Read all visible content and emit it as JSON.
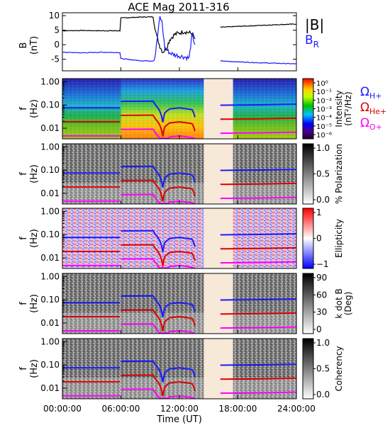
{
  "chart_data": [
    {
      "type": "line",
      "title": "ACE Mag 2011-316",
      "ylabel": "B",
      "yunit": "(nT)",
      "ylim": [
        -9,
        11
      ],
      "yticks": [
        10,
        5,
        0,
        -5
      ],
      "xlim": [
        0,
        24
      ],
      "series": [
        {
          "name": "|B|",
          "color": "#000000",
          "segments": [
            [
              [
                0,
                4.8
              ],
              [
                2,
                4.9
              ],
              [
                4,
                4.8
              ],
              [
                5.9,
                4.8
              ],
              [
                6,
                9.2
              ],
              [
                8,
                9.5
              ],
              [
                9.3,
                9.6
              ],
              [
                9.5,
                6
              ],
              [
                9.7,
                2.5
              ],
              [
                10,
                -0.5
              ],
              [
                10.3,
                -2.5
              ],
              [
                10.7,
                -1
              ],
              [
                11,
                1.8
              ],
              [
                11.5,
                3.5
              ],
              [
                12.5,
                4.6
              ],
              [
                13.3,
                3.8
              ],
              [
                13.6,
                2
              ]
            ],
            [
              [
                16.2,
                6
              ],
              [
                18,
                6.3
              ],
              [
                20,
                6.6
              ],
              [
                22,
                6.9
              ],
              [
                24,
                7.1
              ]
            ]
          ]
        },
        {
          "name": "B",
          "subscript": "R",
          "color": "#1a1aff",
          "segments": [
            [
              [
                0,
                -2.6
              ],
              [
                2,
                -2.8
              ],
              [
                4,
                -2.6
              ],
              [
                5.9,
                -2.7
              ],
              [
                6,
                -4.8
              ],
              [
                8,
                -5.5
              ],
              [
                9.3,
                -5.6
              ],
              [
                9.5,
                -4
              ],
              [
                9.8,
                4
              ],
              [
                10,
                9.5
              ],
              [
                10.2,
                8
              ],
              [
                10.5,
                -1
              ],
              [
                11,
                -2.8
              ],
              [
                11.5,
                -3.5
              ],
              [
                12.5,
                -4.2
              ],
              [
                13,
                -4.6
              ],
              [
                13.3,
                3.5
              ],
              [
                13.6,
                0
              ]
            ],
            [
              [
                16.2,
                -5.6
              ],
              [
                18,
                -5.9
              ],
              [
                20,
                -6.2
              ],
              [
                22,
                -6.4
              ],
              [
                24,
                -6.6
              ]
            ]
          ]
        }
      ]
    },
    {
      "type": "heatmap",
      "ylabel": "f",
      "yunit": "(Hz)",
      "yticks": [
        "1.00",
        "0.10",
        "0.01"
      ],
      "colorbar": {
        "label": "Intensity",
        "unit": "(nT²/Hz)",
        "ticks": [
          "10⁰",
          "10⁻¹",
          "10⁻²",
          "10⁻³",
          "10⁻⁴",
          "10⁻⁵",
          "10⁻⁶"
        ]
      },
      "gap_x": [
        14.5,
        17.5
      ],
      "legend": [
        {
          "base": "Ω",
          "sub": "H+",
          "color": "#1a1aff"
        },
        {
          "base": "Ω",
          "sub": "He+",
          "color": "#dd0000"
        },
        {
          "base": "Ω",
          "sub": "O+",
          "color": "#ff00ff"
        }
      ]
    },
    {
      "type": "heatmap",
      "ylabel": "f",
      "yunit": "(Hz)",
      "yticks": [
        "1.00",
        "0.10",
        "0.01"
      ],
      "colorbar": {
        "label": "% Polarization",
        "unit": "",
        "ticks": [
          "1.0",
          "0.5",
          "0.0"
        ]
      },
      "gap_x": [
        14.5,
        17.5
      ]
    },
    {
      "type": "heatmap",
      "ylabel": "f",
      "yunit": "(Hz)",
      "yticks": [
        "1.00",
        "0.10",
        "0.01"
      ],
      "colorbar": {
        "label": "Ellipticity",
        "unit": "",
        "ticks": [
          "1",
          "0",
          "−1"
        ]
      },
      "gap_x": [
        14.5,
        17.5
      ]
    },
    {
      "type": "heatmap",
      "ylabel": "f",
      "yunit": "(Hz)",
      "yticks": [
        "1.00",
        "0.10",
        "0.01"
      ],
      "colorbar": {
        "label": "k dot B",
        "unit": "(Deg)",
        "ticks": [
          "90",
          "60",
          "30",
          "0"
        ]
      },
      "gap_x": [
        14.5,
        17.5
      ]
    },
    {
      "type": "heatmap",
      "ylabel": "f",
      "yunit": "(Hz)",
      "yticks": [
        "1.00",
        "0.10",
        "0.01"
      ],
      "colorbar": {
        "label": "Coherency",
        "unit": "",
        "ticks": [
          "1.0",
          "0.5",
          "0.0"
        ]
      },
      "gap_x": [
        14.5,
        17.5
      ]
    }
  ],
  "gyro_lines": {
    "segment1": [
      [
        0,
        0.5
      ],
      [
        5.9,
        0.5
      ]
    ],
    "segment2": [
      [
        6,
        0.95
      ],
      [
        9.3,
        0.97
      ],
      [
        9.5,
        0.7
      ],
      [
        10,
        0.35
      ],
      [
        10.3,
        0.12
      ],
      [
        10.5,
        0.3
      ],
      [
        11,
        0.45
      ],
      [
        12,
        0.5
      ],
      [
        13.3,
        0.42
      ],
      [
        13.6,
        0.2
      ]
    ],
    "segment3": [
      [
        16.2,
        0.65
      ],
      [
        20,
        0.67
      ],
      [
        24,
        0.72
      ]
    ],
    "ratios": {
      "He+": 0.25,
      "O+": 0.0625
    }
  },
  "x_axis": {
    "label": "Time (UT)",
    "ticks": [
      "00:00:00",
      "06:00:00",
      "12:00:00",
      "18:00:00",
      "24:00:00"
    ]
  }
}
